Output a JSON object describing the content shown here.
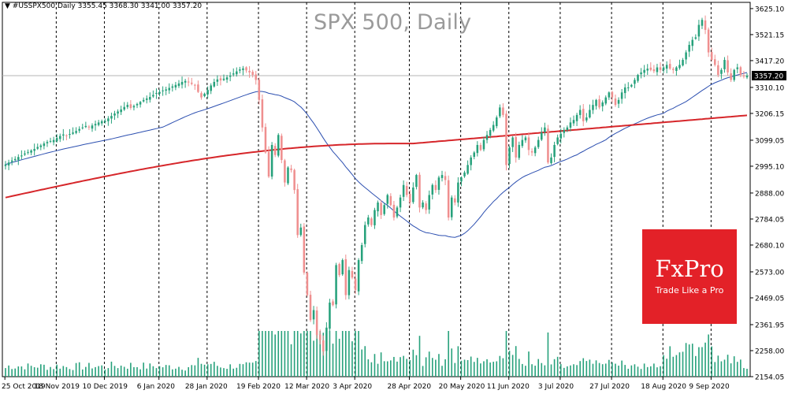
{
  "header": {
    "symbol_line": "▼ #USSPX500,Daily  3355.45 3368.30 3341.00 3357.20",
    "title": "SPX 500, Daily"
  },
  "logo": {
    "name": "FxPro",
    "tagline": "Trade Like a Pro",
    "color": "#e32128"
  },
  "colors": {
    "bull": "#26a17b",
    "bear": "#ef8f8f",
    "ma_fast": "#2c4fb0",
    "ma_slow": "#d6262a",
    "volume": "#26a17b",
    "grid": "#000000",
    "price_tag_bg": "#000000",
    "price_tag_fg": "#ffffff"
  },
  "chart_data": {
    "type": "candlestick",
    "title": "SPX 500, Daily",
    "ylim": [
      2154,
      3650
    ],
    "y_ticks": [
      3625.1,
      3521.15,
      3417.2,
      3310.1,
      3206.15,
      3099.05,
      2995.1,
      2888.0,
      2784.05,
      2680.1,
      2573.0,
      2469.05,
      2361.95,
      2258.0,
      2154.05
    ],
    "y_tick_labels": [
      "3625.10",
      "3521.15",
      "3417.20",
      "3310.10",
      "3206.15",
      "3099.05",
      "2995.10",
      "2888.00",
      "2784.05",
      "2680.10",
      "2573.00",
      "2469.05",
      "2361.95",
      "2258.00",
      "2154.05"
    ],
    "x_ticks": [
      "25 Oct 2019",
      "18 Nov 2019",
      "10 Dec 2019",
      "6 Jan 2020",
      "28 Jan 2020",
      "19 Feb 2020",
      "12 Mar 2020",
      "3 Apr 2020",
      "28 Apr 2020",
      "20 May 2020",
      "11 Jun 2020",
      "3 Jul 2020",
      "27 Jul 2020",
      "18 Aug 2020",
      "9 Sep 2020"
    ],
    "x_tick_bar_index": [
      0,
      16,
      31,
      48,
      63,
      79,
      94,
      109,
      126,
      142,
      157,
      173,
      189,
      205,
      220
    ],
    "last_price": "3357.20",
    "closes": [
      3002,
      3010,
      3018,
      3024,
      3032,
      3038,
      3046,
      3052,
      3058,
      3064,
      3072,
      3078,
      3086,
      3092,
      3096,
      3100,
      3108,
      3116,
      3122,
      3118,
      3124,
      3130,
      3136,
      3144,
      3150,
      3156,
      3150,
      3158,
      3164,
      3170,
      3175,
      3176,
      3186,
      3196,
      3206,
      3214,
      3222,
      3232,
      3240,
      3228,
      3236,
      3244,
      3252,
      3260,
      3266,
      3272,
      3280,
      3288,
      3292,
      3298,
      3302,
      3308,
      3314,
      3320,
      3326,
      3332,
      3336,
      3330,
      3324,
      3318,
      3292,
      3270,
      3285,
      3300,
      3318,
      3332,
      3342,
      3338,
      3345,
      3350,
      3357,
      3366,
      3374,
      3382,
      3386,
      3378,
      3370,
      3360,
      3340,
      3260,
      3150,
      3050,
      2954,
      3080,
      3040,
      3120,
      3020,
      2930,
      2990,
      2980,
      2900,
      2720,
      2750,
      2570,
      2480,
      2380,
      2420,
      2320,
      2300,
      2255,
      2350,
      2450,
      2440,
      2600,
      2560,
      2620,
      2480,
      2580,
      2550,
      2500,
      2620,
      2680,
      2760,
      2790,
      2760,
      2820,
      2850,
      2800,
      2840,
      2880,
      2840,
      2790,
      2830,
      2870,
      2920,
      2880,
      2850,
      2910,
      2960,
      2830,
      2850,
      2820,
      2880,
      2920,
      2900,
      2950,
      2960,
      2940,
      2790,
      2870,
      2850,
      2930,
      2950,
      2970,
      3000,
      3030,
      3050,
      3080,
      3060,
      3100,
      3120,
      3140,
      3160,
      3190,
      3230,
      3200,
      3000,
      3070,
      3110,
      3030,
      3080,
      3100,
      3110,
      3060,
      3050,
      3070,
      3100,
      3130,
      3150,
      3010,
      3030,
      3080,
      3110,
      3125,
      3140,
      3150,
      3170,
      3180,
      3200,
      3220,
      3175,
      3190,
      3220,
      3240,
      3260,
      3230,
      3250,
      3270,
      3290,
      3270,
      3240,
      3260,
      3290,
      3310,
      3310,
      3320,
      3340,
      3360,
      3370,
      3380,
      3385,
      3380,
      3375,
      3390,
      3380,
      3390,
      3400,
      3385,
      3380,
      3390,
      3400,
      3420,
      3450,
      3480,
      3500,
      3510,
      3560,
      3580,
      3540,
      3450,
      3420,
      3400,
      3360,
      3380,
      3420,
      3370,
      3340,
      3380,
      3390,
      3360,
      3355,
      3357
    ]
  }
}
